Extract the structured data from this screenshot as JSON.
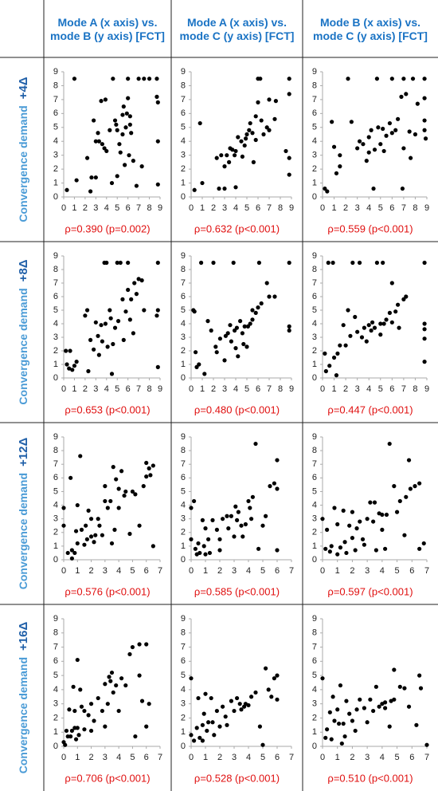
{
  "columns": [
    "Mode A (x axis) vs. mode B (y axis) [FCT]",
    "Mode A (x axis) vs. mode C (y axis) [FCT]",
    "Mode B (x axis) vs. mode C (y axis) [FCT]"
  ],
  "rows": [
    {
      "label": "Convergence demand",
      "demand": "+4Δ"
    },
    {
      "label": "Convergence demand",
      "demand": "+8Δ"
    },
    {
      "label": "Convergence demand",
      "demand": "+12Δ"
    },
    {
      "label": "Convergence demand",
      "demand": "+16Δ"
    }
  ],
  "chart_data": [
    {
      "type": "scatter",
      "color": "#000000",
      "xlim": [
        0,
        9
      ],
      "ylim": [
        0,
        9
      ],
      "xticks": [
        0,
        1,
        2,
        3,
        4,
        5,
        6,
        7,
        8,
        9
      ],
      "yticks": [
        0,
        1,
        2,
        3,
        4,
        5,
        6,
        7,
        8,
        9
      ],
      "annotation": "ρ=0.390 (p=0.002)",
      "x": [
        0.3,
        1,
        1.2,
        2.2,
        2.5,
        2.6,
        2.8,
        3,
        3,
        3.2,
        3.3,
        3.5,
        3.6,
        3.8,
        3.9,
        4,
        4.3,
        4.5,
        4.6,
        4.8,
        4.9,
        5,
        5,
        5.2,
        5.3,
        5.5,
        5.5,
        5.6,
        5.8,
        5.9,
        6,
        6,
        6.2,
        6.3,
        6.5,
        6.8,
        7,
        7.3,
        7.5,
        8,
        8.7,
        8.7,
        8.8,
        8.8,
        8.8,
        6.2,
        5.7,
        6.1
      ],
      "values": [
        0.5,
        8.5,
        1.2,
        2.8,
        0.4,
        1.4,
        5.5,
        1.4,
        4,
        4.6,
        4,
        6.9,
        3.8,
        3.5,
        7,
        3.3,
        4.8,
        1,
        8.5,
        5.5,
        5.2,
        1.5,
        4.8,
        3.8,
        3.2,
        4.5,
        5.9,
        6.5,
        5,
        6,
        8.5,
        7.1,
        5.2,
        4.6,
        2.6,
        0.8,
        8.5,
        2.2,
        8.5,
        8.5,
        8.5,
        7.2,
        6.8,
        4,
        0.9,
        5.8,
        2.3,
        3
      ]
    },
    {
      "type": "scatter",
      "color": "#000000",
      "xlim": [
        0,
        9
      ],
      "ylim": [
        0,
        9
      ],
      "xticks": [
        0,
        1,
        2,
        3,
        4,
        5,
        6,
        7,
        8,
        9
      ],
      "yticks": [
        0,
        1,
        2,
        3,
        4,
        5,
        6,
        7,
        8,
        9
      ],
      "annotation": "ρ=0.632 (p<0.001)",
      "x": [
        0.3,
        0.8,
        1,
        2.3,
        2.5,
        2.7,
        3,
        3,
        3.2,
        3.4,
        3.5,
        3.7,
        4,
        4,
        4.2,
        4.5,
        4.6,
        4.8,
        5,
        5.2,
        5.3,
        5.5,
        5.6,
        5.8,
        6,
        6,
        6.2,
        6.3,
        6.5,
        6.8,
        7,
        7,
        7.5,
        7.6,
        8.5,
        8.8,
        8.8,
        8.8,
        8.8,
        5.8,
        4.9,
        3.9
      ],
      "values": [
        0.5,
        5.3,
        1,
        2.8,
        0.6,
        3,
        0.6,
        2.2,
        3,
        2.5,
        3.5,
        3.4,
        3.3,
        0.7,
        4.3,
        4,
        2.9,
        3.7,
        4.5,
        4.8,
        5.3,
        4.6,
        2.5,
        4.1,
        6.8,
        8.5,
        8.5,
        5.5,
        4.5,
        5,
        4.8,
        7,
        5.6,
        6.9,
        3.3,
        8.5,
        7.4,
        2.8,
        1.6,
        5.8,
        4.2,
        3
      ]
    },
    {
      "type": "scatter",
      "color": "#000000",
      "xlim": [
        0,
        9
      ],
      "ylim": [
        0,
        9
      ],
      "xticks": [
        0,
        1,
        2,
        3,
        4,
        5,
        6,
        7,
        8,
        9
      ],
      "yticks": [
        0,
        1,
        2,
        3,
        4,
        5,
        6,
        7,
        8,
        9
      ],
      "annotation": "ρ=0.559 (p<0.001)",
      "x": [
        0.2,
        0.4,
        0.8,
        1,
        1.2,
        1.5,
        1.5,
        2.2,
        2.5,
        3,
        3.2,
        3.5,
        3.8,
        4,
        4,
        4.2,
        4.4,
        4.5,
        4.7,
        4.8,
        5,
        5.2,
        5.3,
        5.5,
        5.8,
        6,
        6,
        6.3,
        6.5,
        6.8,
        7,
        6.9,
        7,
        7.2,
        7.5,
        7.8,
        8,
        8.2,
        8.8,
        8.8,
        8.8,
        8.8,
        8.9,
        7.6
      ],
      "values": [
        0.6,
        0.4,
        5.4,
        3.6,
        1.7,
        2.2,
        3,
        8.5,
        5.4,
        3.5,
        4,
        3.8,
        2.6,
        4.3,
        3.2,
        4.8,
        0.6,
        3.4,
        8.5,
        5,
        3.8,
        4.9,
        3.3,
        4.4,
        5.3,
        8.5,
        4.6,
        4.8,
        5.6,
        7.2,
        8.5,
        0.6,
        3.5,
        7.4,
        4.7,
        8.5,
        4.5,
        6.7,
        8.5,
        7.1,
        5.5,
        4.8,
        4.2,
        2.8
      ]
    },
    {
      "type": "scatter",
      "color": "#000000",
      "xlim": [
        0,
        9
      ],
      "ylim": [
        0,
        9
      ],
      "xticks": [
        0,
        1,
        2,
        3,
        4,
        5,
        6,
        7,
        8,
        9
      ],
      "yticks": [
        0,
        1,
        2,
        3,
        4,
        5,
        6,
        7,
        8,
        9
      ],
      "annotation": "ρ=0.653 (p<0.001)",
      "x": [
        0.2,
        0.3,
        0.5,
        0.6,
        0.8,
        1,
        1.2,
        2,
        2.2,
        2.3,
        2.5,
        2.8,
        3,
        3.2,
        3.3,
        3.5,
        3.6,
        3.8,
        3.9,
        4,
        4.3,
        4.5,
        4.6,
        4.8,
        5,
        5.1,
        5.3,
        5.5,
        5.6,
        5.8,
        6,
        6,
        6.3,
        6.5,
        6.6,
        6.8,
        7,
        7.3,
        7.5,
        8.8,
        8.8,
        8.8,
        8.7,
        6.2,
        4.4,
        4.1
      ],
      "values": [
        2,
        1,
        0.7,
        2,
        0.6,
        0.9,
        1.2,
        4.6,
        5,
        0.5,
        2.8,
        2.1,
        4.1,
        3.1,
        1.7,
        3.9,
        2.7,
        8.5,
        4,
        8.5,
        5,
        0.3,
        2.5,
        3.7,
        8.5,
        4.2,
        8.5,
        5.8,
        2.8,
        4.9,
        8.5,
        6.5,
        5.8,
        3.3,
        7,
        6.2,
        7.3,
        7.2,
        5,
        8.5,
        5,
        0.8,
        4.6,
        4.3,
        4.4,
        2.3
      ]
    },
    {
      "type": "scatter",
      "color": "#000000",
      "xlim": [
        0,
        9
      ],
      "ylim": [
        0,
        9
      ],
      "xticks": [
        0,
        1,
        2,
        3,
        4,
        5,
        6,
        7,
        8,
        9
      ],
      "yticks": [
        0,
        1,
        2,
        3,
        4,
        5,
        6,
        7,
        8,
        9
      ],
      "annotation": "ρ=0.480 (p<0.001)",
      "x": [
        0.2,
        0.3,
        0.4,
        0.5,
        0.7,
        0.9,
        1.2,
        1.5,
        1.8,
        2,
        2.2,
        2.3,
        2.6,
        3,
        3.1,
        3.3,
        3.5,
        3.6,
        3.8,
        3.9,
        4,
        4.1,
        4.2,
        4.4,
        4.6,
        4.8,
        5,
        5.1,
        5.3,
        5.5,
        5.8,
        6,
        6.1,
        6.3,
        6.8,
        7,
        7.5,
        8.8,
        8.8,
        8.8,
        5.5,
        4.7
      ],
      "values": [
        5,
        4.9,
        1.9,
        0.8,
        1,
        8.5,
        0.3,
        4.2,
        3.5,
        8.5,
        2.3,
        1.9,
        2.9,
        1.3,
        3.1,
        3.3,
        3.9,
        2.7,
        8.5,
        3.5,
        2.2,
        3.7,
        1.6,
        4.2,
        3.3,
        3.8,
        2.3,
        3.8,
        4,
        5,
        4.8,
        5.2,
        8.5,
        5.5,
        7,
        6,
        6,
        8.5,
        3.8,
        3.5,
        4.3,
        2.5
      ]
    },
    {
      "type": "scatter",
      "color": "#000000",
      "xlim": [
        0,
        9
      ],
      "ylim": [
        0,
        9
      ],
      "xticks": [
        0,
        1,
        2,
        3,
        4,
        5,
        6,
        7,
        8,
        9
      ],
      "yticks": [
        0,
        1,
        2,
        3,
        4,
        5,
        6,
        7,
        8,
        9
      ],
      "annotation": "ρ=0.447 (p<0.001)",
      "x": [
        0.2,
        0.3,
        0.6,
        0.9,
        1,
        1.3,
        1.5,
        1.8,
        2,
        2.2,
        2.4,
        2.6,
        3,
        3.2,
        3.4,
        3.6,
        3.8,
        4,
        4.2,
        4.5,
        4.7,
        5,
        5,
        5.3,
        5.5,
        5.8,
        6,
        6,
        6.3,
        6.5,
        6.6,
        7,
        7.2,
        8.8,
        8.8,
        8.8,
        8.8,
        8.8,
        5.2,
        0.5,
        2.8,
        4.3,
        1.2
      ],
      "values": [
        1.8,
        0.5,
        0.9,
        8.5,
        1.5,
        1.8,
        2.4,
        3.9,
        2.4,
        5,
        3.1,
        8.5,
        3.4,
        8.5,
        3,
        3.7,
        2.7,
        3.9,
        3.5,
        3.7,
        8.5,
        4,
        3.2,
        4,
        4.3,
        4.8,
        7,
        4.1,
        4.9,
        5.4,
        3.7,
        5.8,
        6,
        8.5,
        4,
        3.6,
        2.9,
        1.2,
        8.5,
        8.5,
        4.5,
        4.1,
        0.2
      ]
    },
    {
      "type": "scatter",
      "color": "#000000",
      "xlim": [
        0,
        7
      ],
      "ylim": [
        0,
        9
      ],
      "xticks": [
        0,
        1,
        2,
        3,
        4,
        5,
        6,
        7
      ],
      "yticks": [
        0,
        1,
        2,
        3,
        4,
        5,
        6,
        7,
        8,
        9
      ],
      "annotation": "ρ=0.576 (p<0.001)",
      "x": [
        0,
        0,
        0.3,
        0.5,
        0.6,
        0.6,
        0.8,
        0.9,
        1,
        1,
        1.2,
        1.3,
        1.5,
        1.6,
        1.8,
        2,
        2,
        2.2,
        2.5,
        2.6,
        2.8,
        3,
        3,
        3.2,
        3.4,
        3.5,
        3.6,
        3.7,
        3.8,
        4,
        4,
        4.2,
        4.4,
        4.5,
        4.8,
        5,
        5.2,
        5.5,
        5.8,
        6,
        6,
        6.2,
        6.3,
        6.5,
        6.5,
        2.3,
        1.7
      ],
      "values": [
        3.8,
        2.5,
        0.5,
        6,
        0.7,
        0.1,
        0.5,
        2.1,
        4,
        1.2,
        7.6,
        2.2,
        1.1,
        2.5,
        3.6,
        1.7,
        3,
        1.3,
        3,
        2.5,
        1.8,
        4.3,
        5.4,
        3.8,
        4.3,
        1.2,
        6.8,
        2.2,
        5.9,
        5.2,
        3.8,
        6.5,
        4.7,
        5,
        1.9,
        5,
        4.8,
        2.5,
        5.4,
        6.1,
        7.1,
        6.7,
        6.2,
        6.9,
        1,
        1.8,
        1.5
      ]
    },
    {
      "type": "scatter",
      "color": "#000000",
      "xlim": [
        0,
        7
      ],
      "ylim": [
        0,
        9
      ],
      "xticks": [
        0,
        1,
        2,
        3,
        4,
        5,
        6,
        7
      ],
      "yticks": [
        0,
        1,
        2,
        3,
        4,
        5,
        6,
        7,
        8,
        9
      ],
      "annotation": "ρ=0.585 (p<0.001)",
      "x": [
        0,
        0,
        0.2,
        0.3,
        0.4,
        0.5,
        0.6,
        0.8,
        0.9,
        1,
        1.2,
        1.3,
        1.5,
        1.8,
        2,
        2,
        2.2,
        2.5,
        2.6,
        2.8,
        3,
        3.1,
        3.2,
        3.3,
        3.6,
        3.8,
        4,
        4.1,
        4.2,
        4.3,
        4.5,
        4.7,
        5,
        5.5,
        5.8,
        6,
        6,
        6,
        5.2,
        3.5,
        1
      ],
      "values": [
        1.5,
        3.8,
        4.3,
        0.8,
        0.4,
        1.2,
        0.5,
        2.9,
        1,
        2.3,
        1.5,
        0.5,
        2.9,
        2.2,
        1.5,
        0.7,
        3,
        3.2,
        2.3,
        3.2,
        1.7,
        3.9,
        2.9,
        3.5,
        1.7,
        2.6,
        4.3,
        3.8,
        3,
        4.6,
        8.5,
        0.8,
        2.5,
        5.4,
        5.6,
        5.2,
        7.3,
        0.7,
        3.2,
        2.5,
        0.4
      ]
    },
    {
      "type": "scatter",
      "color": "#000000",
      "xlim": [
        0,
        7
      ],
      "ylim": [
        0,
        9
      ],
      "xticks": [
        0,
        1,
        2,
        3,
        4,
        5,
        6,
        7
      ],
      "yticks": [
        0,
        1,
        2,
        3,
        4,
        5,
        6,
        7,
        8,
        9
      ],
      "annotation": "ρ=0.597 (p<0.001)",
      "x": [
        0,
        0.2,
        0.3,
        0.5,
        0.6,
        0.8,
        1,
        1,
        1.2,
        1.4,
        1.5,
        1.6,
        1.8,
        2,
        2,
        2.2,
        2.3,
        2.5,
        2.8,
        3,
        3.2,
        3.4,
        3.5,
        3.6,
        3.8,
        4,
        4.2,
        4.3,
        4.5,
        4.8,
        5,
        5.2,
        5.5,
        5.6,
        5.8,
        5.9,
        6.2,
        6.5,
        6.5,
        6.8,
        4,
        2.7
      ],
      "values": [
        3,
        0.8,
        2.2,
        0.6,
        1,
        3.8,
        0.4,
        2.6,
        0.9,
        3.6,
        1.3,
        0.5,
        2.5,
        1.6,
        3.5,
        0.7,
        2.3,
        2.8,
        1.1,
        3,
        4.2,
        2.8,
        4.2,
        0.7,
        3.4,
        3.3,
        0.8,
        3.3,
        8.5,
        5.4,
        3.5,
        4.3,
        1.8,
        4.6,
        7.3,
        5.2,
        5.4,
        5.6,
        0.8,
        1.2,
        2.2,
        1.5
      ]
    },
    {
      "type": "scatter",
      "color": "#000000",
      "xlim": [
        0,
        7
      ],
      "ylim": [
        0,
        9
      ],
      "xticks": [
        0,
        1,
        2,
        3,
        4,
        5,
        6,
        7
      ],
      "yticks": [
        0,
        1,
        2,
        3,
        4,
        5,
        6,
        7,
        8,
        9
      ],
      "annotation": "ρ=0.706 (p<0.001)",
      "x": [
        0,
        0.1,
        0.2,
        0.3,
        0.4,
        0.5,
        0.6,
        0.7,
        0.8,
        0.9,
        1,
        1,
        1.1,
        1.2,
        1.3,
        1.5,
        1.8,
        2,
        2,
        2.2,
        2.5,
        2.8,
        3,
        3,
        3.2,
        3.3,
        3.4,
        3.5,
        3.6,
        3.8,
        4,
        4.2,
        4.5,
        4.8,
        5,
        5.2,
        5.5,
        5.5,
        5.7,
        6,
        6,
        6.2,
        1.5,
        0.8
      ],
      "values": [
        0.3,
        0.1,
        1.1,
        0.7,
        2.6,
        0.7,
        1.1,
        4.2,
        1.3,
        0.5,
        1.3,
        6.1,
        0.8,
        4,
        2.8,
        1.2,
        2.2,
        3,
        1.1,
        1.8,
        3.4,
        2.5,
        4.4,
        1.4,
        3,
        4.9,
        4.6,
        5.2,
        3.8,
        4.3,
        2.5,
        4.8,
        4.3,
        6.5,
        7,
        0.7,
        7.2,
        5,
        3.2,
        7.2,
        1.4,
        3,
        2.5,
        2.5
      ]
    },
    {
      "type": "scatter",
      "color": "#000000",
      "xlim": [
        0,
        7
      ],
      "ylim": [
        0,
        9
      ],
      "xticks": [
        0,
        1,
        2,
        3,
        4,
        5,
        6,
        7
      ],
      "yticks": [
        0,
        1,
        2,
        3,
        4,
        5,
        6,
        7,
        8,
        9
      ],
      "annotation": "ρ=0.528 (p<0.001)",
      "x": [
        0,
        0,
        0.2,
        0.4,
        0.5,
        0.6,
        0.8,
        0.9,
        1,
        1.1,
        1.2,
        1.4,
        1.5,
        1.6,
        1.8,
        2,
        2.2,
        2.4,
        2.5,
        2.8,
        3,
        3.2,
        3.4,
        3.5,
        3.8,
        4,
        4.2,
        4.5,
        4.8,
        5,
        5.2,
        5.4,
        5.6,
        5.8,
        6,
        6,
        3.7,
        0.8
      ],
      "values": [
        4.8,
        0.8,
        0.4,
        1.3,
        3.4,
        0.6,
        1.5,
        2.3,
        3.7,
        1.1,
        1.7,
        3.4,
        1.7,
        0.8,
        2.5,
        1.4,
        2.8,
        2.1,
        1.5,
        3.2,
        2.5,
        3.4,
        3,
        2.6,
        3,
        2.9,
        3.5,
        3.8,
        1.4,
        0.1,
        5.5,
        4,
        3.5,
        4.8,
        3.3,
        5,
        2.8,
        0.4
      ]
    },
    {
      "type": "scatter",
      "color": "#000000",
      "xlim": [
        0,
        7
      ],
      "ylim": [
        0,
        9
      ],
      "xticks": [
        0,
        1,
        2,
        3,
        4,
        5,
        6,
        7
      ],
      "yticks": [
        0,
        1,
        2,
        3,
        4,
        5,
        6,
        7,
        8,
        9
      ],
      "annotation": "ρ=0.510 (p<0.001)",
      "x": [
        0,
        0.2,
        0.3,
        0.5,
        0.6,
        0.7,
        0.8,
        1,
        1.1,
        1.2,
        1.4,
        1.5,
        1.6,
        1.8,
        2,
        2.2,
        2.3,
        2.5,
        2.8,
        3,
        3.2,
        3.4,
        3.6,
        3.8,
        4,
        4.2,
        4.5,
        4.6,
        4.8,
        4.8,
        5.2,
        5.5,
        5.8,
        6.3,
        6.5,
        6.6,
        7,
        4.2,
        1.3
      ],
      "values": [
        4.8,
        0.6,
        1.2,
        2.4,
        0.5,
        3.5,
        1.8,
        2.6,
        1.6,
        4.3,
        1.6,
        0.7,
        3.2,
        2.3,
        1.8,
        1.1,
        2.6,
        3.3,
        2.7,
        1.7,
        3.3,
        2.5,
        4.2,
        2.8,
        3,
        3.1,
        1.4,
        3.2,
        5.4,
        3.3,
        4.2,
        4.1,
        2.8,
        1.5,
        5,
        4.1,
        0.1,
        2.7,
        0.2
      ]
    }
  ]
}
